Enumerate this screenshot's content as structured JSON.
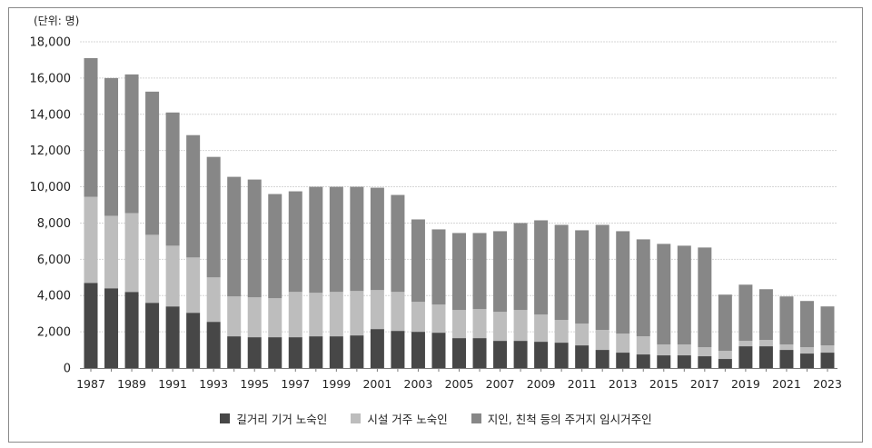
{
  "chart_data": {
    "type": "bar",
    "stacked": true,
    "unit_label": "(단위: 명)",
    "ylim": [
      0,
      18000
    ],
    "ytick_labels": [
      "0",
      "2,000",
      "4,000",
      "6,000",
      "8,000",
      "10,000",
      "12,000",
      "14,000",
      "16,000",
      "18,000"
    ],
    "xtick_labels": [
      "1987",
      "1989",
      "1991",
      "1993",
      "1995",
      "1997",
      "1999",
      "2001",
      "2003",
      "2005",
      "2007",
      "2009",
      "2011",
      "2013",
      "2015",
      "2017",
      "2019",
      "2021",
      "2023"
    ],
    "grid": true,
    "legend_position": "bottom",
    "x": [
      1987,
      1988,
      1989,
      1990,
      1991,
      1992,
      1993,
      1994,
      1995,
      1996,
      1997,
      1998,
      1999,
      2000,
      2001,
      2002,
      2003,
      2004,
      2005,
      2006,
      2007,
      2008,
      2009,
      2010,
      2011,
      2012,
      2013,
      2014,
      2015,
      2016,
      2017,
      2018,
      2019,
      2020,
      2021,
      2022,
      2023
    ],
    "series": [
      {
        "name": "길거리 기거 노숙인",
        "color": "#474747",
        "values": [
          4700,
          4400,
          4200,
          3600,
          3400,
          3050,
          2550,
          1750,
          1700,
          1700,
          1700,
          1750,
          1750,
          1800,
          2150,
          2050,
          2000,
          1950,
          1650,
          1650,
          1500,
          1500,
          1450,
          1400,
          1250,
          1000,
          850,
          750,
          700,
          700,
          650,
          500,
          1200,
          1200,
          1000,
          800,
          850
        ]
      },
      {
        "name": "시설 거주 노숙인",
        "color": "#bdbdbd",
        "values": [
          4750,
          4000,
          4350,
          3750,
          3350,
          3050,
          2450,
          2200,
          2200,
          2150,
          2500,
          2400,
          2450,
          2450,
          2150,
          2150,
          1650,
          1550,
          1550,
          1600,
          1600,
          1700,
          1500,
          1250,
          1200,
          1100,
          1050,
          1000,
          600,
          600,
          500,
          450,
          300,
          350,
          300,
          350,
          400
        ]
      },
      {
        "name": "지인, 친척 등의 주거지 임시거주인",
        "color": "#878787",
        "values": [
          7650,
          7600,
          7650,
          7900,
          7350,
          6750,
          6650,
          6600,
          6500,
          5750,
          5550,
          5850,
          5800,
          5750,
          5650,
          5350,
          4550,
          4150,
          4250,
          4200,
          4450,
          4800,
          5200,
          5250,
          5150,
          5800,
          5650,
          5350,
          5550,
          5450,
          5500,
          3100,
          3100,
          2800,
          2650,
          2550,
          2150
        ]
      }
    ]
  }
}
